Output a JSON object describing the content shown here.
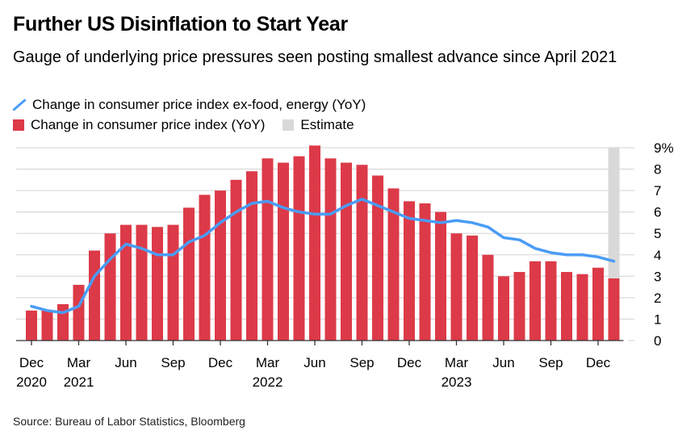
{
  "chart_data": {
    "type": "bar",
    "title": "Further US Disinflation to Start Year",
    "subtitle": "Gauge of underlying price pressures seen posting smallest advance since April 2021",
    "source": "Source: Bureau of Labor Statistics, Bloomberg",
    "ylim": [
      0,
      9
    ],
    "yticks": [
      "0",
      "1",
      "2",
      "3",
      "4",
      "5",
      "6",
      "7",
      "8",
      "9%"
    ],
    "grid": true,
    "x_tick_labels": [
      {
        "month": "Dec",
        "year": "2020",
        "index": 0
      },
      {
        "month": "Mar",
        "year": "2021",
        "index": 3
      },
      {
        "month": "Jun",
        "year": "",
        "index": 6
      },
      {
        "month": "Sep",
        "year": "",
        "index": 9
      },
      {
        "month": "Dec",
        "year": "",
        "index": 12
      },
      {
        "month": "Mar",
        "year": "2022",
        "index": 15
      },
      {
        "month": "Jun",
        "year": "",
        "index": 18
      },
      {
        "month": "Sep",
        "year": "",
        "index": 21
      },
      {
        "month": "Dec",
        "year": "",
        "index": 24
      },
      {
        "month": "Mar",
        "year": "2023",
        "index": 27
      },
      {
        "month": "Jun",
        "year": "",
        "index": 30
      },
      {
        "month": "Sep",
        "year": "",
        "index": 33
      },
      {
        "month": "Dec",
        "year": "",
        "index": 36
      }
    ],
    "categories": [
      "Dec 2020",
      "Jan 2021",
      "Feb 2021",
      "Mar 2021",
      "Apr 2021",
      "May 2021",
      "Jun 2021",
      "Jul 2021",
      "Aug 2021",
      "Sep 2021",
      "Oct 2021",
      "Nov 2021",
      "Dec 2021",
      "Jan 2022",
      "Feb 2022",
      "Mar 2022",
      "Apr 2022",
      "May 2022",
      "Jun 2022",
      "Jul 2022",
      "Aug 2022",
      "Sep 2022",
      "Oct 2022",
      "Nov 2022",
      "Dec 2022",
      "Jan 2023",
      "Feb 2023",
      "Mar 2023",
      "Apr 2023",
      "May 2023",
      "Jun 2023",
      "Jul 2023",
      "Aug 2023",
      "Sep 2023",
      "Oct 2023",
      "Nov 2023",
      "Dec 2023",
      "Jan 2024"
    ],
    "series": [
      {
        "name": "Change in consumer price index ex-food, energy (YoY)",
        "type": "line",
        "color": "#4a9cf5",
        "values": [
          1.6,
          1.4,
          1.3,
          1.6,
          3.0,
          3.8,
          4.5,
          4.3,
          4.0,
          4.0,
          4.6,
          4.9,
          5.5,
          6.0,
          6.4,
          6.5,
          6.2,
          6.0,
          5.9,
          5.9,
          6.3,
          6.6,
          6.3,
          6.0,
          5.7,
          5.6,
          5.5,
          5.6,
          5.5,
          5.3,
          4.8,
          4.7,
          4.3,
          4.1,
          4.0,
          4.0,
          3.9,
          3.7
        ]
      },
      {
        "name": "Change in consumer price index (YoY)",
        "type": "bar",
        "color": "#dc3a48",
        "values": [
          1.4,
          1.4,
          1.7,
          2.6,
          4.2,
          5.0,
          5.4,
          5.4,
          5.3,
          5.4,
          6.2,
          6.8,
          7.0,
          7.5,
          7.9,
          8.5,
          8.3,
          8.6,
          9.1,
          8.5,
          8.3,
          8.2,
          7.7,
          7.1,
          6.5,
          6.4,
          6.0,
          5.0,
          4.9,
          4.0,
          3.0,
          3.2,
          3.7,
          3.7,
          3.2,
          3.1,
          3.4,
          2.9
        ]
      }
    ],
    "estimate": {
      "name": "Estimate",
      "color": "#d9d9d9",
      "category": "Jan 2024"
    }
  }
}
